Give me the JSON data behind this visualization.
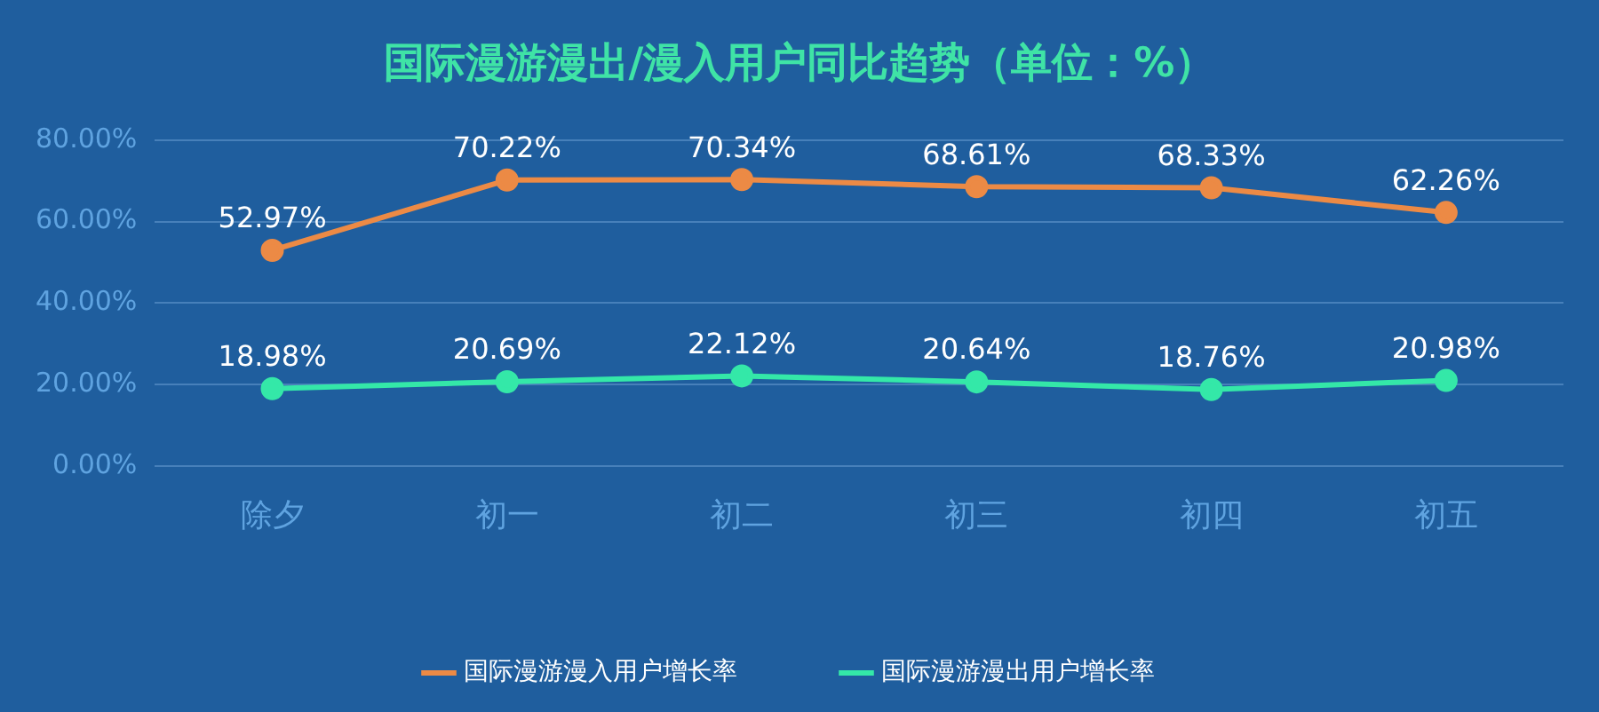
{
  "chart_data": {
    "type": "line",
    "title": "国际漫游漫出/漫入用户同比趋势（单位：%）",
    "categories": [
      "除夕",
      "初一",
      "初二",
      "初三",
      "初四",
      "初五"
    ],
    "series": [
      {
        "name": "国际漫游漫入用户增长率",
        "color": "#ec8a45",
        "values": [
          52.97,
          70.22,
          70.34,
          68.61,
          68.33,
          62.26
        ],
        "value_labels": [
          "52.97%",
          "70.22%",
          "70.34%",
          "68.61%",
          "68.33%",
          "62.26%"
        ]
      },
      {
        "name": "国际漫游漫出用户增长率",
        "color": "#34e8a8",
        "values": [
          18.98,
          20.69,
          22.12,
          20.64,
          18.76,
          20.98
        ],
        "value_labels": [
          "18.98%",
          "20.69%",
          "22.12%",
          "20.64%",
          "18.76%",
          "20.98%"
        ]
      }
    ],
    "ylim": [
      0,
      80
    ],
    "yticks": [
      {
        "value": 0,
        "label": "0.00%"
      },
      {
        "value": 20,
        "label": "20.00%"
      },
      {
        "value": 40,
        "label": "40.00%"
      },
      {
        "value": 60,
        "label": "60.00%"
      },
      {
        "value": 80,
        "label": "80.00%"
      }
    ],
    "grid": "y",
    "legend": "bottom",
    "marker": "circle",
    "line_style": "solid"
  }
}
